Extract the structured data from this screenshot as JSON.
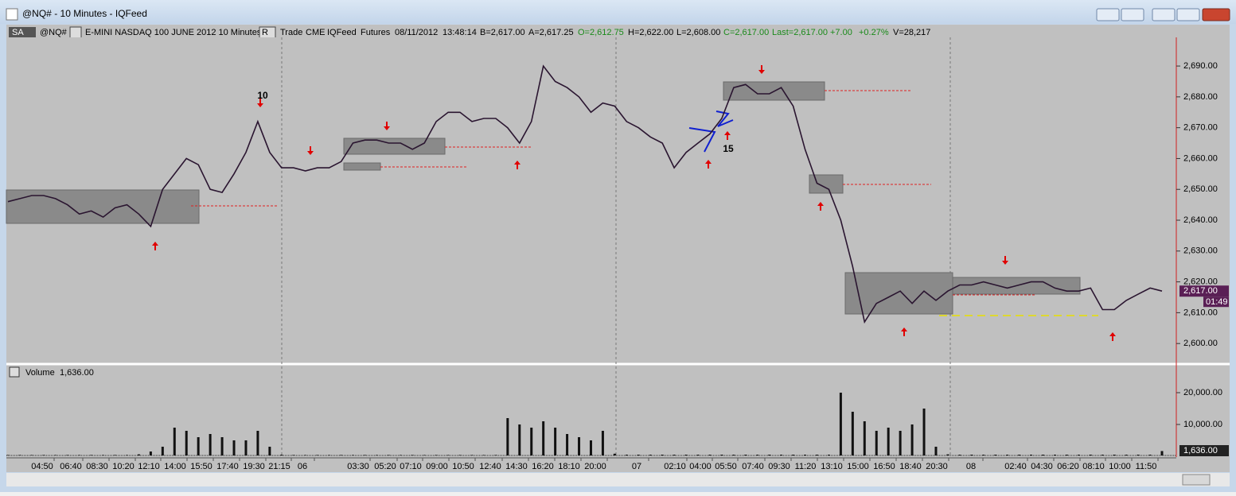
{
  "window": {
    "title": "@NQ# - 10 Minutes - IQFeed"
  },
  "toolbar": {
    "symbol_box": "SA",
    "symbol": "@NQ#",
    "description": "E-MINI NASDAQ 100 JUNE 2012  10 Minutes",
    "r_box": "R",
    "fields": [
      {
        "text": "Trade",
        "color": "#000000"
      },
      {
        "text": "CME",
        "color": "#000000"
      },
      {
        "text": "IQFeed",
        "color": "#000000"
      },
      {
        "text": "Futures",
        "color": "#000000"
      },
      {
        "text": "08/11/2012",
        "color": "#000000"
      },
      {
        "text": "13:48:14",
        "color": "#000000"
      },
      {
        "text": "B=2,617.00",
        "color": "#000000"
      },
      {
        "text": "A=2,617.25",
        "color": "#000000"
      },
      {
        "text": "O=2,612.75",
        "color": "#1a8a1a"
      },
      {
        "text": "H=2,622.00",
        "color": "#000000"
      },
      {
        "text": "L=2,608.00",
        "color": "#000000"
      },
      {
        "text": "C=2,617.00",
        "color": "#1a8a1a"
      },
      {
        "text": "Last=2,617.00",
        "color": "#1a8a1a"
      },
      {
        "text": "+7.00",
        "color": "#1a8a1a"
      },
      {
        "text": "+0.27%",
        "color": "#1a8a1a"
      },
      {
        "text": "V=28,217",
        "color": "#000000"
      }
    ]
  },
  "chart_data": [
    {
      "type": "line",
      "color": "#2a1530",
      "values": [
        2646,
        2647,
        2648,
        2648,
        2647,
        2645,
        2642,
        2643,
        2641,
        2644,
        2645,
        2642,
        2638,
        2650,
        2655,
        2660,
        2658,
        2650,
        2649,
        2655,
        2662,
        2672,
        2662,
        2657,
        2657,
        2656,
        2657,
        2657,
        2659,
        2665,
        2666,
        2666,
        2665,
        2665,
        2663,
        2665,
        2672,
        2675,
        2675,
        2672,
        2673,
        2673,
        2670,
        2665,
        2672,
        2690,
        2685,
        2683,
        2680,
        2675,
        2678,
        2677,
        2672,
        2670,
        2667,
        2665,
        2657,
        2662,
        2665,
        2668,
        2673,
        2683,
        2684,
        2681,
        2681,
        2683,
        2677,
        2663,
        2652,
        2650,
        2640,
        2625,
        2607,
        2613,
        2615,
        2617,
        2613,
        2617,
        2614,
        2617,
        2619,
        2619,
        2620,
        2619,
        2618,
        2619,
        2620,
        2620,
        2618,
        2617,
        2617,
        2618,
        2611,
        2611,
        2614,
        2616,
        2618,
        2617
      ],
      "ylim": [
        2593.6,
        2699.3
      ],
      "yticks": [
        {
          "value": 2600,
          "label": "2,600.00"
        },
        {
          "value": 2610,
          "label": "2,610.00"
        },
        {
          "value": 2620,
          "label": "2,620.00"
        },
        {
          "value": 2630,
          "label": "2,630.00"
        },
        {
          "value": 2640,
          "label": "2,640.00"
        },
        {
          "value": 2650,
          "label": "2,650.00"
        },
        {
          "value": 2660,
          "label": "2,660.00"
        },
        {
          "value": 2670,
          "label": "2,670.00"
        },
        {
          "value": 2680,
          "label": "2,680.00"
        },
        {
          "value": 2690,
          "label": "2,690.00"
        }
      ],
      "last_label": "2,617.00",
      "timer_label": "01:49",
      "annotations": [
        "10",
        "15"
      ]
    },
    {
      "type": "bar",
      "title": "Volume",
      "title_value": "1,636.00",
      "color": "#111111",
      "values": [
        400,
        400,
        400,
        400,
        400,
        400,
        400,
        400,
        400,
        400,
        400,
        600,
        1500,
        3000,
        9000,
        8000,
        6000,
        7000,
        6000,
        5000,
        5000,
        8000,
        3000,
        500,
        400,
        400,
        400,
        400,
        400,
        400,
        400,
        400,
        400,
        400,
        400,
        400,
        400,
        400,
        400,
        400,
        400,
        400,
        12000,
        10000,
        9000,
        11000,
        9000,
        7000,
        6000,
        5000,
        8000,
        800,
        500,
        500,
        500,
        500,
        500,
        500,
        500,
        500,
        500,
        500,
        500,
        500,
        500,
        500,
        500,
        500,
        500,
        500,
        20000,
        14000,
        11000,
        8000,
        9000,
        8000,
        10000,
        15000,
        3000,
        600,
        500,
        500,
        500,
        500,
        500,
        500,
        500,
        500,
        500,
        500,
        500,
        500,
        500,
        500,
        500,
        500,
        500,
        1636
      ],
      "ylim": [
        0,
        28500
      ],
      "yticks": [
        {
          "value": 10000,
          "label": "10,000.00"
        },
        {
          "value": 20000,
          "label": "20,000.00"
        }
      ],
      "last_label": "1,636.00"
    }
  ],
  "time_axis": [
    "04:50",
    "06:40",
    "08:30",
    "10:20",
    "12:10",
    "14:00",
    "15:50",
    "17:40",
    "19:30",
    "21:15",
    "06",
    "03:30",
    "05:20",
    "07:10",
    "09:00",
    "10:50",
    "12:40",
    "14:30",
    "16:20",
    "18:10",
    "20:00",
    "07",
    "02:10",
    "04:00",
    "05:50",
    "07:40",
    "09:30",
    "11:20",
    "13:10",
    "15:00",
    "16:50",
    "18:40",
    "20:30",
    "08",
    "02:40",
    "04:30",
    "06:20",
    "08:10",
    "10:00",
    "11:50"
  ]
}
